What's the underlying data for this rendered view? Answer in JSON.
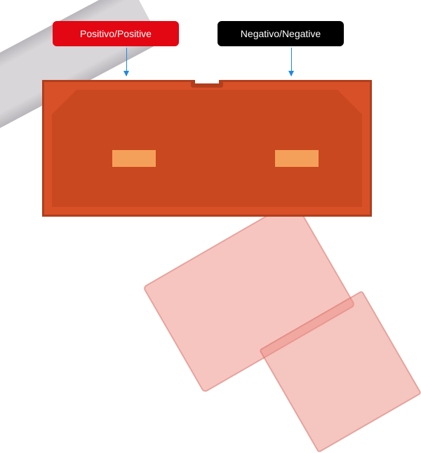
{
  "labels": {
    "positive": {
      "text": "Positivo/Positive",
      "bg_color": "#e30613",
      "text_color": "#ffffff"
    },
    "negative": {
      "text": "Negativo/Negative",
      "bg_color": "#000000",
      "text_color": "#ffffff"
    }
  },
  "arrows": {
    "color": "#1e88e5",
    "head_color": "#1e88e5"
  },
  "connector": {
    "type": "infographic",
    "outer_fill": "#d85028",
    "outer_stroke": "#b23e1c",
    "outer_stroke_width": 6,
    "inner_fill": "#c94820",
    "terminal_fill": "#f5a05a",
    "notch_width": 40,
    "notch_depth": 8,
    "chamfer": 35
  },
  "background": {
    "cable_color": "#d8d6d9",
    "cable_shadow": "#b8b6ba",
    "connector_body_color": "rgba(240,150,140,0.55)",
    "connector_tip_color": "rgba(235,140,130,0.5)"
  }
}
